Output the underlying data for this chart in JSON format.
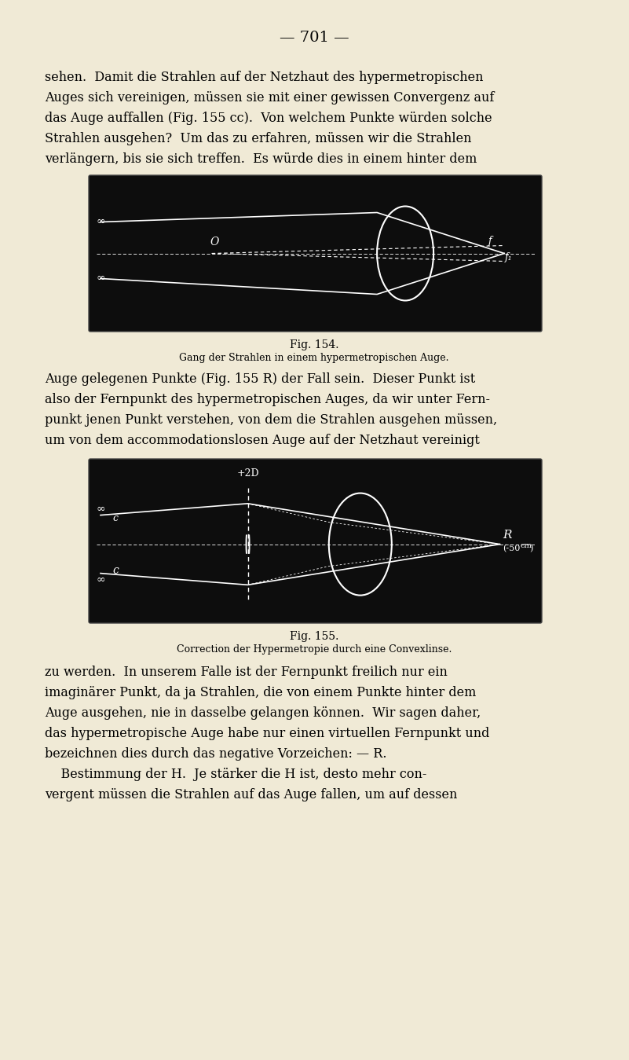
{
  "page_bg": "#f0ead6",
  "page_number": "— 701 —",
  "fig1_caption_title": "Fig. 154.",
  "fig1_caption_sub": "Gang der Strahlen in einem hypermetropischen Auge.",
  "fig2_caption_title": "Fig. 155.",
  "fig2_caption_sub": "Correction der Hypermetropie durch eine Convexlinse.",
  "para1_lines": [
    "sehen.  Damit die Strahlen auf der Netzhaut des hypermetropischen",
    "Auges sich vereinigen, müssen sie mit einer gewissen Convergenz auf",
    "das Auge auffallen (Fig. 155 cc).  Von welchem Punkte würden solche",
    "Strahlen ausgehen?  Um das zu erfahren, müssen wir die Strahlen",
    "verlängern, bis sie sich treffen.  Es würde dies in einem hinter dem"
  ],
  "para2_lines": [
    "Auge gelegenen Punkte (Fig. 155 R) der Fall sein.  Dieser Punkt ist",
    "also der Fernpunkt des hypermetropischen Auges, da wir unter Fern-",
    "punkt jenen Punkt verstehen, von dem die Strahlen ausgehen müssen,",
    "um von dem accommodationslosen Auge auf der Netzhaut vereinigt"
  ],
  "para3_lines": [
    "zu werden.  In unserem Falle ist der Fernpunkt freilich nur ein",
    "imaginärer Punkt, da ja Strahlen, die von einem Punkte hinter dem",
    "Auge ausgehen, nie in dasselbe gelangen können.  Wir sagen daher,",
    "das hypermetropische Auge habe nur einen virtuellen Fernpunkt und",
    "bezeichnen dies durch das negative Vorzeichen: — R."
  ],
  "para4_lines": [
    "    Bestimmung der H.  Je stärker die H ist, desto mehr con-",
    "vergent müssen die Strahlen auf das Auge fallen, um auf dessen"
  ]
}
